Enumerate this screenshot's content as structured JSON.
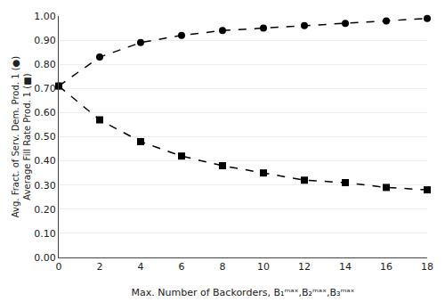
{
  "chart_data": {
    "type": "line",
    "x_label": "Max. Number of Backorders, B₁ᵐᵃˣ,B₂ᵐᵃˣ,B₃ᵐᵃˣ",
    "y_label": "Avg. Fract. of Serv. Dem. Prod. 1 (●)\nAverage Fill Rate Prod. 1 (■)",
    "x": [
      0,
      2,
      4,
      6,
      8,
      10,
      12,
      14,
      16,
      18
    ],
    "series": [
      {
        "color": "#000000",
        "marker": "circle",
        "line_style": "dashed",
        "values": [
          0.71,
          0.83,
          0.89,
          0.92,
          0.94,
          0.95,
          0.96,
          0.97,
          0.98,
          0.99
        ]
      },
      {
        "color": "#000000",
        "marker": "square",
        "line_style": "dashed",
        "values": [
          0.71,
          0.57,
          0.48,
          0.42,
          0.38,
          0.35,
          0.32,
          0.31,
          0.29,
          0.28
        ]
      }
    ],
    "xlim": [
      0,
      18
    ],
    "ylim": [
      0,
      1
    ],
    "xticks": [
      0,
      2,
      4,
      6,
      8,
      10,
      12,
      14,
      16,
      18
    ],
    "yticks": [
      {
        "value": 0,
        "label": "0.00"
      },
      {
        "value": 0.1,
        "label": "0.10"
      },
      {
        "value": 0.2,
        "label": "0.20"
      },
      {
        "value": 0.3,
        "label": "0.30"
      },
      {
        "value": 0.4,
        "label": "0.40"
      },
      {
        "value": 0.5,
        "label": "0.50"
      },
      {
        "value": 0.6,
        "label": "0.60"
      },
      {
        "value": 0.7,
        "label": "0.70"
      },
      {
        "value": 0.8,
        "label": "0.80"
      },
      {
        "value": 0.9,
        "label": "0.90"
      },
      {
        "value": 1,
        "label": "1.00"
      }
    ],
    "grid": "y"
  }
}
